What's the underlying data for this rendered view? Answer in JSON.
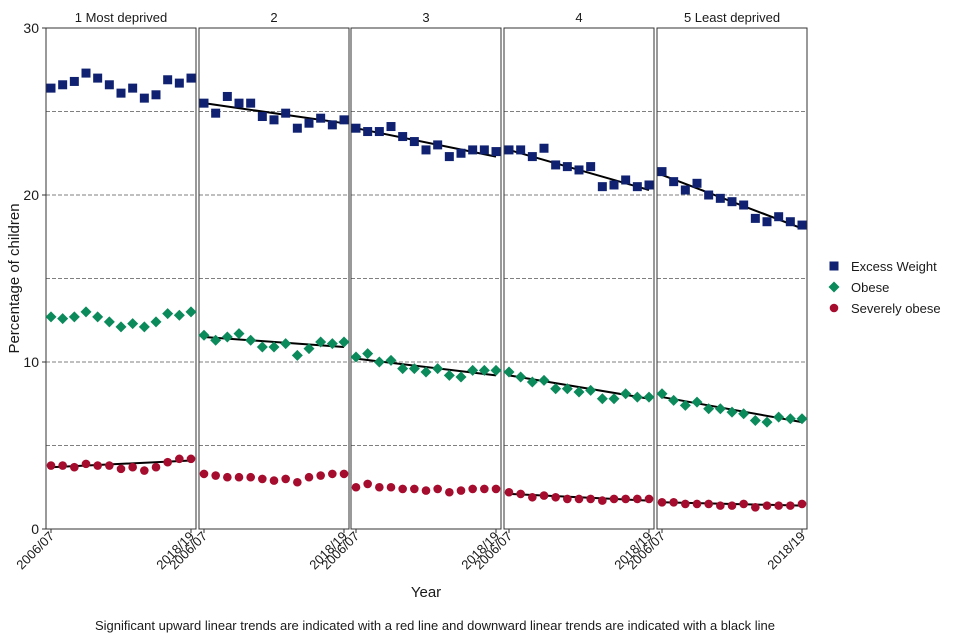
{
  "chart_data": {
    "type": "scatter",
    "ylabel": "Percentage of children",
    "xlabel": "Year",
    "ylim": [
      0,
      30
    ],
    "y_ticks": [
      0,
      10,
      20,
      30
    ],
    "y_gridlines": [
      5,
      10,
      15,
      20,
      25
    ],
    "x_years": [
      "2006/07",
      "2007/08",
      "2008/09",
      "2009/10",
      "2010/11",
      "2011/12",
      "2012/13",
      "2013/14",
      "2014/15",
      "2015/16",
      "2016/17",
      "2017/18",
      "2018/19"
    ],
    "x_tick_labels": [
      "2006/07",
      "2018/19"
    ],
    "legend_position": "right",
    "legend": [
      {
        "name": "Excess Weight",
        "color": "#0f2170",
        "marker": "square"
      },
      {
        "name": "Obese",
        "color": "#0b8a5c",
        "marker": "diamond"
      },
      {
        "name": "Severely obese",
        "color": "#a50c2d",
        "marker": "circle"
      }
    ],
    "panels": [
      {
        "title": "1 Most deprived",
        "series": {
          "Excess Weight": [
            26.4,
            26.6,
            26.8,
            27.3,
            27.0,
            26.6,
            26.1,
            26.4,
            25.8,
            26.0,
            26.9,
            26.7,
            27.0
          ],
          "Obese": [
            12.7,
            12.6,
            12.7,
            13.0,
            12.7,
            12.4,
            12.1,
            12.3,
            12.1,
            12.4,
            12.9,
            12.8,
            13.0
          ],
          "Severely obese": [
            3.8,
            3.8,
            3.7,
            3.9,
            3.8,
            3.8,
            3.6,
            3.7,
            3.5,
            3.7,
            4.0,
            4.2,
            4.2
          ]
        },
        "trends": {
          "Severely obese": [
            3.7,
            4.1
          ]
        }
      },
      {
        "title": "2",
        "series": {
          "Excess Weight": [
            25.5,
            24.9,
            25.9,
            25.5,
            25.5,
            24.7,
            24.5,
            24.9,
            24.0,
            24.3,
            24.6,
            24.2,
            24.5
          ],
          "Obese": [
            11.6,
            11.3,
            11.5,
            11.7,
            11.3,
            10.9,
            10.9,
            11.1,
            10.4,
            10.8,
            11.2,
            11.1,
            11.2
          ],
          "Severely obese": [
            3.3,
            3.2,
            3.1,
            3.1,
            3.1,
            3.0,
            2.9,
            3.0,
            2.8,
            3.1,
            3.2,
            3.3,
            3.3
          ]
        },
        "trends": {
          "Excess Weight": [
            25.5,
            24.3
          ],
          "Obese": [
            11.5,
            10.9
          ]
        }
      },
      {
        "title": "3",
        "series": {
          "Excess Weight": [
            24.0,
            23.8,
            23.8,
            24.1,
            23.5,
            23.2,
            22.7,
            23.0,
            22.3,
            22.5,
            22.7,
            22.7,
            22.6
          ],
          "Obese": [
            10.3,
            10.5,
            10.0,
            10.1,
            9.6,
            9.6,
            9.4,
            9.6,
            9.2,
            9.1,
            9.5,
            9.5,
            9.5
          ],
          "Severely obese": [
            2.5,
            2.7,
            2.5,
            2.5,
            2.4,
            2.4,
            2.3,
            2.4,
            2.2,
            2.3,
            2.4,
            2.4,
            2.4
          ]
        },
        "trends": {
          "Excess Weight": [
            24.0,
            22.3
          ],
          "Obese": [
            10.2,
            9.2
          ]
        }
      },
      {
        "title": "4",
        "series": {
          "Excess Weight": [
            22.7,
            22.7,
            22.3,
            22.8,
            21.8,
            21.7,
            21.5,
            21.7,
            20.5,
            20.6,
            20.9,
            20.5,
            20.6
          ],
          "Obese": [
            9.4,
            9.1,
            8.8,
            8.9,
            8.4,
            8.4,
            8.2,
            8.3,
            7.8,
            7.8,
            8.1,
            7.9,
            7.9
          ],
          "Severely obese": [
            2.2,
            2.1,
            1.9,
            2.0,
            1.9,
            1.8,
            1.8,
            1.8,
            1.7,
            1.8,
            1.8,
            1.8,
            1.8
          ]
        },
        "trends": {
          "Excess Weight": [
            22.7,
            20.3
          ],
          "Obese": [
            9.2,
            7.8
          ],
          "Severely obese": [
            2.1,
            1.7
          ]
        }
      },
      {
        "title": "5 Least deprived",
        "series": {
          "Excess Weight": [
            21.4,
            20.8,
            20.3,
            20.7,
            20.0,
            19.8,
            19.6,
            19.4,
            18.6,
            18.4,
            18.7,
            18.4,
            18.2
          ],
          "Obese": [
            8.1,
            7.7,
            7.4,
            7.6,
            7.2,
            7.2,
            7.0,
            6.9,
            6.5,
            6.4,
            6.7,
            6.6,
            6.6
          ],
          "Severely obese": [
            1.6,
            1.6,
            1.5,
            1.5,
            1.5,
            1.4,
            1.4,
            1.5,
            1.3,
            1.4,
            1.4,
            1.4,
            1.5
          ]
        },
        "trends": {
          "Excess Weight": [
            21.2,
            18.0
          ],
          "Obese": [
            7.9,
            6.4
          ],
          "Severely obese": [
            1.6,
            1.4
          ]
        }
      }
    ]
  },
  "caption": "Significant upward linear trends are indicated with a red line and downward linear trends are indicated with a black line"
}
